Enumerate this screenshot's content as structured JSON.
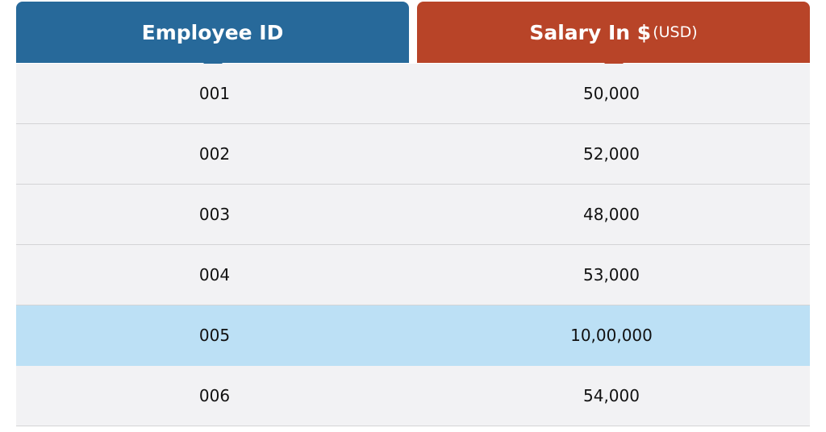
{
  "table": {
    "columns": [
      {
        "title": "Employee ID"
      },
      {
        "title": "Salary In $",
        "unit": "(USD)"
      }
    ],
    "rows": [
      [
        "001",
        "50,000"
      ],
      [
        "002",
        "52,000"
      ],
      [
        "003",
        "48,000"
      ],
      [
        "004",
        "53,000"
      ],
      [
        "005",
        "10,00,000"
      ],
      [
        "006",
        "54,000"
      ]
    ]
  }
}
